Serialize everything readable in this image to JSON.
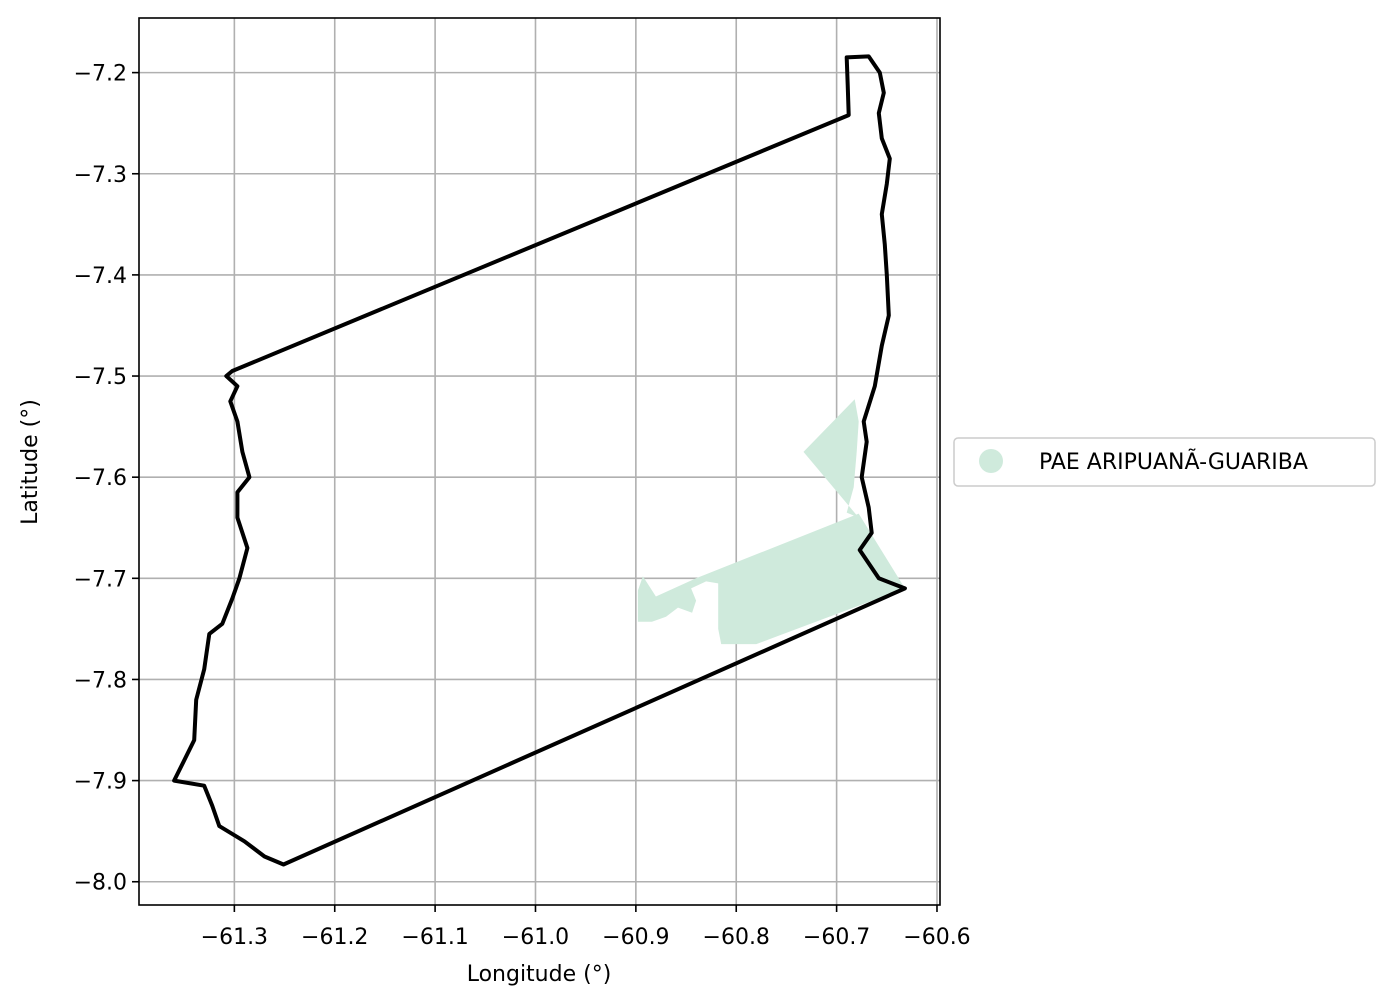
{
  "chart_data": {
    "type": "map",
    "xlabel": "Longitude (°)",
    "ylabel": "Latitude (°)",
    "xlim": [
      -61.395,
      -60.597
    ],
    "ylim": [
      -8.023,
      -7.146
    ],
    "grid": true,
    "legend_placement": "right",
    "x_ticks": [
      {
        "value": -61.3,
        "label": "−61.3"
      },
      {
        "value": -61.2,
        "label": "−61.2"
      },
      {
        "value": -61.1,
        "label": "−61.1"
      },
      {
        "value": -61.0,
        "label": "−61.0"
      },
      {
        "value": -60.9,
        "label": "−60.9"
      },
      {
        "value": -60.8,
        "label": "−60.8"
      },
      {
        "value": -60.7,
        "label": "−60.7"
      },
      {
        "value": -60.6,
        "label": "−60.6"
      }
    ],
    "y_ticks": [
      {
        "value": -7.2,
        "label": "−7.2"
      },
      {
        "value": -7.3,
        "label": "−7.3"
      },
      {
        "value": -7.4,
        "label": "−7.4"
      },
      {
        "value": -7.5,
        "label": "−7.5"
      },
      {
        "value": -7.6,
        "label": "−7.6"
      },
      {
        "value": -7.7,
        "label": "−7.7"
      },
      {
        "value": -7.8,
        "label": "−7.8"
      },
      {
        "value": -7.9,
        "label": "−7.9"
      },
      {
        "value": -8.0,
        "label": "−8.0"
      }
    ],
    "legend": [
      {
        "label": "PAE ARIPUANÃ-GUARIBA",
        "color": "#cfeadc",
        "marker": "circle"
      }
    ],
    "boundary": {
      "color": "#000000",
      "coords": [
        [
          -60.69,
          -7.185
        ],
        [
          -60.668,
          -7.184
        ],
        [
          -60.657,
          -7.2
        ],
        [
          -60.653,
          -7.22
        ],
        [
          -60.658,
          -7.24
        ],
        [
          -60.655,
          -7.265
        ],
        [
          -60.647,
          -7.285
        ],
        [
          -60.65,
          -7.31
        ],
        [
          -60.655,
          -7.34
        ],
        [
          -60.652,
          -7.37
        ],
        [
          -60.65,
          -7.4
        ],
        [
          -60.648,
          -7.44
        ],
        [
          -60.655,
          -7.47
        ],
        [
          -60.662,
          -7.51
        ],
        [
          -60.673,
          -7.545
        ],
        [
          -60.67,
          -7.565
        ],
        [
          -60.675,
          -7.6
        ],
        [
          -60.668,
          -7.63
        ],
        [
          -60.665,
          -7.655
        ],
        [
          -60.677,
          -7.672
        ],
        [
          -60.658,
          -7.7
        ],
        [
          -60.632,
          -7.71
        ],
        [
          -61.251,
          -7.983
        ],
        [
          -61.27,
          -7.975
        ],
        [
          -61.29,
          -7.96
        ],
        [
          -61.315,
          -7.945
        ],
        [
          -61.322,
          -7.925
        ],
        [
          -61.33,
          -7.905
        ],
        [
          -61.36,
          -7.9
        ],
        [
          -61.35,
          -7.88
        ],
        [
          -61.34,
          -7.86
        ],
        [
          -61.338,
          -7.82
        ],
        [
          -61.33,
          -7.79
        ],
        [
          -61.325,
          -7.755
        ],
        [
          -61.312,
          -7.745
        ],
        [
          -61.302,
          -7.72
        ],
        [
          -61.295,
          -7.7
        ],
        [
          -61.287,
          -7.67
        ],
        [
          -61.297,
          -7.64
        ],
        [
          -61.297,
          -7.615
        ],
        [
          -61.285,
          -7.6
        ],
        [
          -61.292,
          -7.575
        ],
        [
          -61.297,
          -7.545
        ],
        [
          -61.304,
          -7.525
        ],
        [
          -61.297,
          -7.51
        ],
        [
          -61.308,
          -7.5
        ],
        [
          -61.302,
          -7.495
        ],
        [
          -60.688,
          -7.242
        ],
        [
          -60.689,
          -7.212
        ],
        [
          -60.69,
          -7.185
        ]
      ]
    },
    "area": {
      "name": "PAE ARIPUANÃ-GUARIBA",
      "color": "#cfeadc",
      "polygons": [
        [
          [
            -60.733,
            -7.575
          ],
          [
            -60.682,
            -7.523
          ],
          [
            -60.678,
            -7.545
          ],
          [
            -60.68,
            -7.575
          ],
          [
            -60.683,
            -7.61
          ],
          [
            -60.69,
            -7.635
          ],
          [
            -60.678,
            -7.64
          ]
        ],
        [
          [
            -60.678,
            -7.636
          ],
          [
            -60.84,
            -7.7
          ],
          [
            -60.88,
            -7.718
          ],
          [
            -60.893,
            -7.698
          ],
          [
            -60.898,
            -7.712
          ],
          [
            -60.898,
            -7.743
          ],
          [
            -60.884,
            -7.743
          ],
          [
            -60.87,
            -7.738
          ],
          [
            -60.858,
            -7.729
          ],
          [
            -60.844,
            -7.734
          ],
          [
            -60.84,
            -7.722
          ],
          [
            -60.845,
            -7.71
          ],
          [
            -60.83,
            -7.703
          ],
          [
            -60.818,
            -7.705
          ],
          [
            -60.818,
            -7.75
          ],
          [
            -60.815,
            -7.765
          ],
          [
            -60.78,
            -7.765
          ],
          [
            -60.632,
            -7.71
          ]
        ]
      ]
    }
  }
}
